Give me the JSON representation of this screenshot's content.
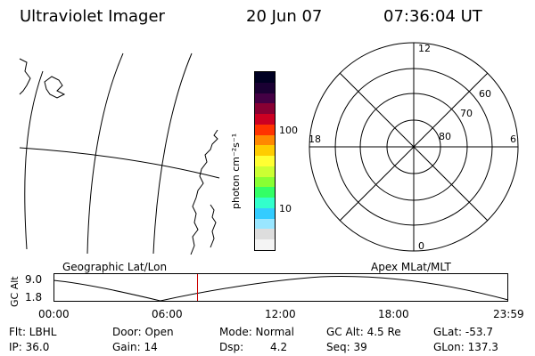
{
  "header": {
    "instrument": "Ultraviolet Imager",
    "date": "20 Jun 07",
    "time": "07:36:04 UT"
  },
  "colorbar": {
    "unit_label": "photon cm⁻²s⁻¹",
    "tick_100": "100",
    "tick_10": "10",
    "colors": [
      "#000022",
      "#1a0033",
      "#440044",
      "#880033",
      "#cc0022",
      "#ff3300",
      "#ff8800",
      "#ffcc00",
      "#ffff33",
      "#ccff33",
      "#88ff33",
      "#33ff66",
      "#33ffcc",
      "#33ccff",
      "#99e6ff",
      "#dddddd",
      "#f4f4f4"
    ]
  },
  "polar_plot": {
    "mlt_top": "12",
    "mlt_left": "18",
    "mlt_right": "6",
    "mlt_bottom": "0",
    "lat_60": "60",
    "lat_70": "70",
    "lat_80": "80"
  },
  "altitude_panel": {
    "left_title": "Geographic Lat/Lon",
    "right_title": "Apex MLat/MLT",
    "axis_label": "GC Alt",
    "y_max": "9.0",
    "y_min": "1.8",
    "x_ticks": [
      "00:00",
      "06:00",
      "12:00",
      "18:00",
      "23:59"
    ],
    "current_time_hour": 7.6
  },
  "status": {
    "filter": "Flt: LBHL",
    "ip": "IP: 36.0",
    "door": "Door: Open",
    "gain": "Gain: 14",
    "mode": "Mode: Normal",
    "dsp_label": "Dsp:",
    "dsp_value": "4.2",
    "gc_alt": "GC Alt: 4.5 Re",
    "seq": "Seq: 39",
    "glat": "GLat: -53.7",
    "glon": "GLon: 137.3"
  }
}
